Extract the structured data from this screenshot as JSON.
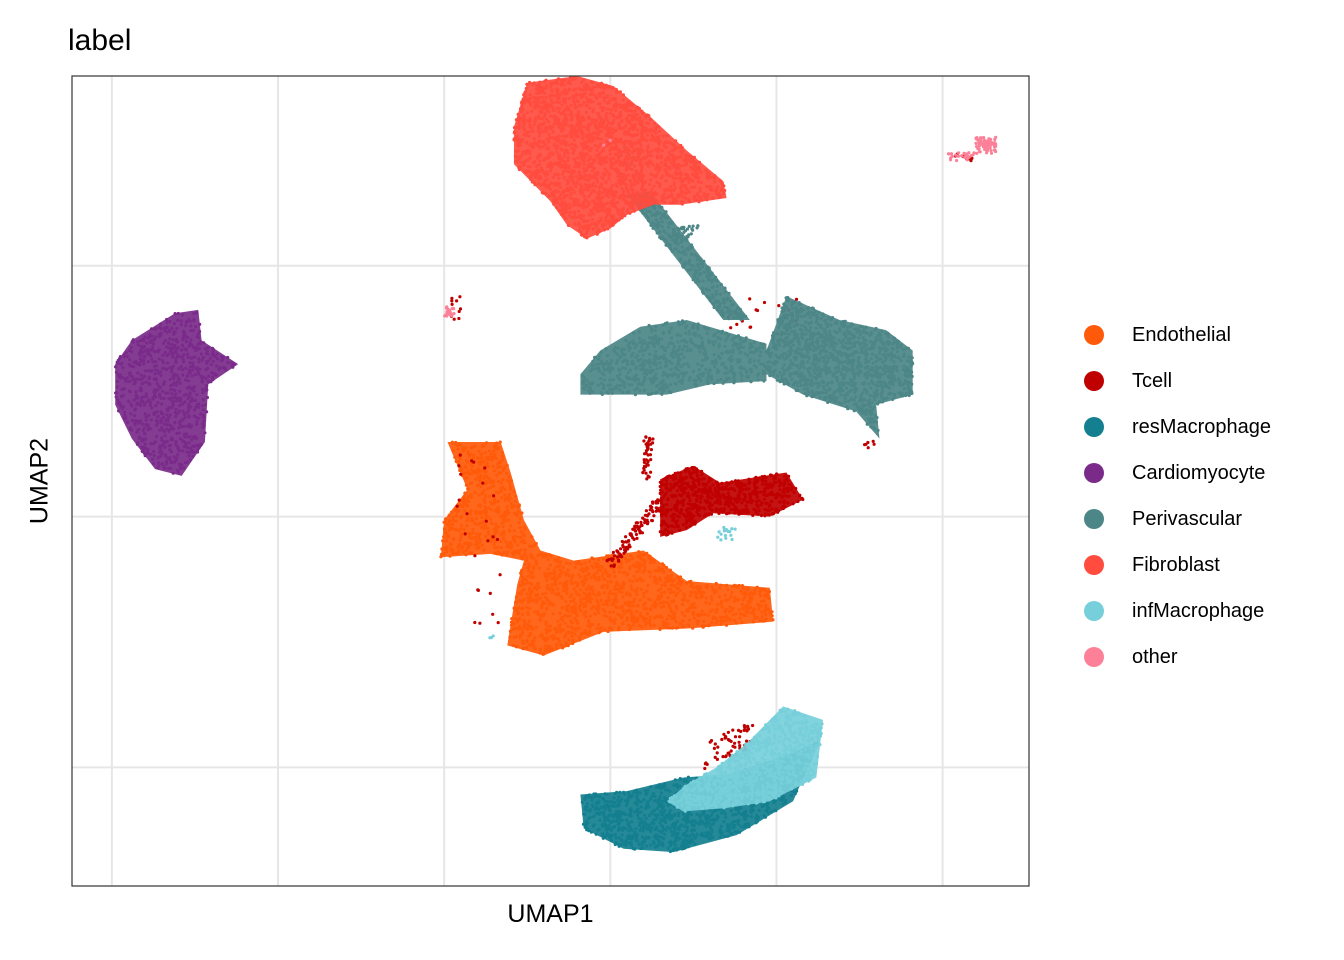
{
  "chart_data": {
    "type": "scatter",
    "title": "label",
    "xlabel": "UMAP1",
    "ylabel": "UMAP2",
    "xlim": [
      -16.2,
      12.6
    ],
    "ylim": [
      -13.5,
      10.4
    ],
    "grid": true,
    "legend_position": "right",
    "series": [
      {
        "name": "Endothelial",
        "color": "#FF5A0A",
        "clusters": [
          {
            "polygon": [
              [
                -4.9,
                -0.4
              ],
              [
                -3.3,
                -0.4
              ],
              [
                -3.0,
                -1.3
              ],
              [
                -2.6,
                -2.7
              ],
              [
                -2.1,
                -3.6
              ],
              [
                -1.1,
                -3.9
              ],
              [
                1.0,
                -3.6
              ],
              [
                2.3,
                -4.5
              ],
              [
                4.8,
                -4.7
              ],
              [
                4.9,
                -5.7
              ],
              [
                2.4,
                -5.9
              ],
              [
                -0.2,
                -6.0
              ],
              [
                -2.0,
                -6.7
              ],
              [
                -3.1,
                -6.4
              ],
              [
                -2.8,
                -4.6
              ],
              [
                -2.6,
                -3.9
              ],
              [
                -3.6,
                -3.7
              ],
              [
                -5.1,
                -3.8
              ],
              [
                -5.0,
                -2.7
              ],
              [
                -4.3,
                -1.8
              ]
            ],
            "n": 1700
          }
        ]
      },
      {
        "name": "Tcell",
        "color": "#C00000",
        "clusters": [
          {
            "polygon": [
              [
                1.5,
                -1.5
              ],
              [
                2.5,
                -1.1
              ],
              [
                3.3,
                -1.6
              ],
              [
                5.3,
                -1.3
              ],
              [
                5.8,
                -2.1
              ],
              [
                4.8,
                -2.6
              ],
              [
                3.1,
                -2.5
              ],
              [
                2.3,
                -3.0
              ],
              [
                1.5,
                -3.2
              ],
              [
                1.5,
                -2.3
              ]
            ],
            "n": 650
          },
          {
            "polygon": [
              [
                -0.1,
                -3.9
              ],
              [
                1.4,
                -2.0
              ],
              [
                1.6,
                -2.3
              ],
              [
                0.1,
                -4.2
              ]
            ],
            "n": 110
          },
          {
            "polygon": [
              [
                1.0,
                -0.2
              ],
              [
                1.3,
                -0.2
              ],
              [
                1.2,
                -1.5
              ],
              [
                0.9,
                -1.5
              ]
            ],
            "n": 40
          },
          {
            "polygon": [
              [
                3.0,
                -9.2
              ],
              [
                4.3,
                -8.6
              ],
              [
                4.2,
                -9.6
              ],
              [
                2.8,
                -10.1
              ]
            ],
            "n": 60
          },
          {
            "polygon": [
              [
                -4.9,
                -0.7
              ],
              [
                -3.5,
                -0.6
              ],
              [
                -3.2,
                -5.8
              ],
              [
                -4.2,
                -5.9
              ]
            ],
            "n": 25
          },
          {
            "polygon": [
              [
                -4.8,
                3.9
              ],
              [
                -4.5,
                3.9
              ],
              [
                -4.5,
                3.2
              ],
              [
                -4.8,
                3.2
              ]
            ],
            "n": 10
          },
          {
            "polygon": [
              [
                3.5,
                3.8
              ],
              [
                5.8,
                3.9
              ],
              [
                5.8,
                2.9
              ],
              [
                3.3,
                2.9
              ]
            ],
            "n": 20
          },
          {
            "polygon": [
              [
                7.7,
                -0.3
              ],
              [
                8.0,
                -0.3
              ],
              [
                7.9,
                -0.6
              ],
              [
                7.6,
                -0.6
              ]
            ],
            "n": 6
          },
          {
            "polygon": [
              [
                10.4,
                8.2
              ],
              [
                11.0,
                8.2
              ],
              [
                10.9,
                7.8
              ],
              [
                10.3,
                7.9
              ]
            ],
            "n": 8
          }
        ]
      },
      {
        "name": "resMacrophage",
        "color": "#137F8F",
        "clusters": [
          {
            "polygon": [
              [
                -0.9,
                -10.8
              ],
              [
                0.5,
                -10.7
              ],
              [
                2.2,
                -10.3
              ],
              [
                3.6,
                -10.2
              ],
              [
                5.4,
                -9.6
              ],
              [
                6.3,
                -9.2
              ],
              [
                5.5,
                -11.0
              ],
              [
                3.8,
                -12.0
              ],
              [
                1.9,
                -12.5
              ],
              [
                0.4,
                -12.4
              ],
              [
                -0.8,
                -11.8
              ]
            ],
            "n": 1100
          }
        ]
      },
      {
        "name": "Cardiomyocyte",
        "color": "#7A2B8A",
        "clusters": [
          {
            "polygon": [
              [
                -14.4,
                2.6
              ],
              [
                -13.1,
                3.4
              ],
              [
                -12.4,
                3.5
              ],
              [
                -12.3,
                2.6
              ],
              [
                -11.2,
                1.9
              ],
              [
                -12.1,
                1.3
              ],
              [
                -12.2,
                -0.4
              ],
              [
                -12.9,
                -1.4
              ],
              [
                -13.7,
                -1.2
              ],
              [
                -14.4,
                -0.3
              ],
              [
                -14.9,
                0.7
              ],
              [
                -14.9,
                1.9
              ]
            ],
            "n": 800
          }
        ]
      },
      {
        "name": "Perivascular",
        "color": "#4C8687",
        "clusters": [
          {
            "polygon": [
              [
                4.7,
                2.3
              ],
              [
                5.3,
                3.9
              ],
              [
                6.9,
                3.2
              ],
              [
                8.3,
                2.9
              ],
              [
                9.1,
                2.3
              ],
              [
                9.1,
                1.0
              ],
              [
                8.0,
                0.7
              ],
              [
                8.1,
                -0.3
              ],
              [
                7.4,
                0.5
              ],
              [
                5.8,
                1.0
              ],
              [
                4.7,
                1.6
              ]
            ],
            "n": 1150
          },
          {
            "polygon": [
              [
                -0.9,
                1.6
              ],
              [
                -0.3,
                2.3
              ],
              [
                0.9,
                3.0
              ],
              [
                2.3,
                3.2
              ],
              [
                4.7,
                2.5
              ],
              [
                4.7,
                1.4
              ],
              [
                3.0,
                1.3
              ],
              [
                1.7,
                1.0
              ],
              [
                0.5,
                1.0
              ],
              [
                -0.9,
                1.0
              ]
            ],
            "n": 650
          },
          {
            "polygon": [
              [
                0.5,
                6.9
              ],
              [
                1.2,
                7.0
              ],
              [
                4.2,
                3.2
              ],
              [
                3.4,
                3.2
              ]
            ],
            "n": 280
          },
          {
            "polygon": [
              [
                1.9,
                6.0
              ],
              [
                2.7,
                6.0
              ],
              [
                2.2,
                5.4
              ],
              [
                1.8,
                5.5
              ]
            ],
            "n": 40
          },
          {
            "polygon": [
              [
                0.3,
                8.3
              ],
              [
                1.0,
                8.3
              ],
              [
                1.0,
                6.8
              ],
              [
                0.3,
                6.8
              ]
            ],
            "n": 30
          }
        ]
      },
      {
        "name": "Fibroblast",
        "color": "#FF4C3F",
        "clusters": [
          {
            "polygon": [
              [
                -2.5,
                10.2
              ],
              [
                -1.0,
                10.4
              ],
              [
                0.1,
                10.1
              ],
              [
                1.2,
                9.2
              ],
              [
                2.3,
                8.2
              ],
              [
                3.4,
                7.3
              ],
              [
                3.5,
                6.8
              ],
              [
                2.1,
                6.6
              ],
              [
                1.3,
                6.6
              ],
              [
                0.5,
                6.3
              ],
              [
                0.0,
                5.9
              ],
              [
                -0.7,
                5.6
              ],
              [
                -1.3,
                6.0
              ],
              [
                -1.8,
                6.7
              ],
              [
                -2.9,
                7.8
              ],
              [
                -2.9,
                8.9
              ]
            ],
            "n": 2000
          }
        ]
      },
      {
        "name": "infMacrophage",
        "color": "#76CFDA",
        "clusters": [
          {
            "polygon": [
              [
                4.1,
                -9.3
              ],
              [
                5.2,
                -8.2
              ],
              [
                6.4,
                -8.6
              ],
              [
                6.2,
                -10.3
              ],
              [
                4.8,
                -11.0
              ],
              [
                3.5,
                -11.2
              ],
              [
                2.2,
                -11.3
              ],
              [
                1.7,
                -11.0
              ],
              [
                2.3,
                -10.5
              ],
              [
                3.2,
                -10.0
              ]
            ],
            "n": 750
          },
          {
            "polygon": [
              [
                3.2,
                -2.9
              ],
              [
                3.8,
                -2.9
              ],
              [
                3.7,
                -3.3
              ],
              [
                3.2,
                -3.3
              ]
            ],
            "n": 18
          },
          {
            "polygon": [
              [
                -3.7,
                -6.0
              ],
              [
                -3.5,
                -6.0
              ],
              [
                -3.5,
                -6.2
              ],
              [
                -3.7,
                -6.2
              ]
            ],
            "n": 3
          }
        ]
      },
      {
        "name": "other",
        "color": "#FC8198",
        "clusters": [
          {
            "polygon": [
              [
                11.0,
                8.6
              ],
              [
                11.6,
                8.6
              ],
              [
                11.6,
                8.1
              ],
              [
                11.0,
                8.1
              ]
            ],
            "n": 80
          },
          {
            "polygon": [
              [
                10.0,
                8.1
              ],
              [
                11.0,
                8.2
              ],
              [
                10.9,
                7.9
              ],
              [
                10.1,
                7.9
              ]
            ],
            "n": 25
          },
          {
            "polygon": [
              [
                -5.0,
                3.6
              ],
              [
                -4.7,
                3.6
              ],
              [
                -4.7,
                3.3
              ],
              [
                -5.0,
                3.3
              ]
            ],
            "n": 20
          },
          {
            "polygon": [
              [
                -0.2,
                8.5
              ],
              [
                0.1,
                8.5
              ],
              [
                0.1,
                8.3
              ],
              [
                -0.2,
                8.3
              ]
            ],
            "n": 2
          }
        ]
      }
    ]
  }
}
